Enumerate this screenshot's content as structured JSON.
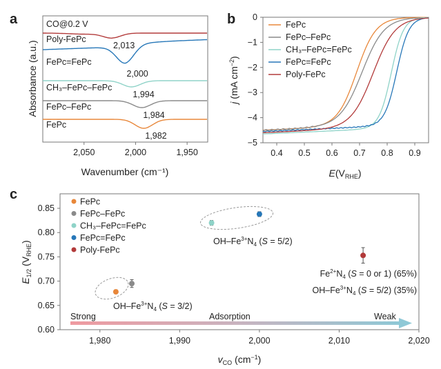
{
  "figure": {
    "panel_labels": [
      "a",
      "b",
      "c"
    ]
  },
  "colors": {
    "FePc": "#e8873a",
    "FePc-FePc": "#8a8a8a",
    "CH3-FePc=FePc": "#8fd3c8",
    "FePc=FePc": "#2677b8",
    "Poly-FePc": "#b23a3a"
  },
  "chart_data": [
    {
      "panel": "a",
      "type": "line",
      "title": "",
      "condition_label": "CO@0.2 V",
      "xlabel": "Wavenumber (cm⁻¹)",
      "ylabel": "Absorbance (a.u.)",
      "xlim": [
        2090,
        1930
      ],
      "x_reversed": true,
      "xticks": [
        2050,
        2000,
        1950
      ],
      "xtick_labels": [
        "2,050",
        "2,000",
        "1,950"
      ],
      "yticks_shown": false,
      "series": [
        {
          "name": "Poly-FePc",
          "label": "Poly-FePc",
          "peak_label": "2,013",
          "peak": 2013
        },
        {
          "name": "FePc=FePc",
          "label": "FePc=FePc",
          "peak_label": "2,000",
          "peak": 2000
        },
        {
          "name": "CH3-FePc-FePc",
          "label": "CH₃–FePc–FePc",
          "peak_label": "1,994",
          "peak": 1994
        },
        {
          "name": "FePc-FePc",
          "label": "FePc–FePc",
          "peak_label": "1,984",
          "peak": 1984
        },
        {
          "name": "FePc",
          "label": "FePc",
          "peak_label": "1,982",
          "peak": 1982
        }
      ]
    },
    {
      "panel": "b",
      "type": "line",
      "xlabel": "E(V_RHE)",
      "ylabel": "j (mA cm⁻²)",
      "xlim": [
        0.35,
        0.95
      ],
      "ylim": [
        -5,
        0
      ],
      "xticks": [
        0.4,
        0.5,
        0.6,
        0.7,
        0.8,
        0.9
      ],
      "yticks": [
        0,
        -1,
        -2,
        -3,
        -4,
        -5
      ],
      "ytick_labels": [
        "0",
        "−1",
        "−2",
        "−3",
        "−4",
        "−5"
      ],
      "legend": "top-left",
      "series": [
        {
          "name": "FePc",
          "label": "FePc",
          "half_wave": 0.69,
          "limit": -4.5
        },
        {
          "name": "FePc-FePc",
          "label": "FePc–FePc",
          "half_wave": 0.71,
          "limit": -4.5
        },
        {
          "name": "CH3-FePc=FePc",
          "label": "CH₃–FePc=FePc",
          "half_wave": 0.815,
          "limit": -4.65
        },
        {
          "name": "FePc=FePc",
          "label": "FePc=FePc",
          "half_wave": 0.835,
          "limit": -4.55
        },
        {
          "name": "Poly-FePc",
          "label": "Poly-FePc",
          "half_wave": 0.75,
          "limit": -4.6
        }
      ]
    },
    {
      "panel": "c",
      "type": "scatter",
      "xlabel": "v_CO (cm⁻¹)",
      "ylabel": "E_1/2 (V_RHE)",
      "xlim": [
        1975,
        2020
      ],
      "ylim": [
        0.6,
        0.87
      ],
      "xticks": [
        1980,
        1990,
        2000,
        2010,
        2020
      ],
      "xtick_labels": [
        "1,980",
        "1,990",
        "2,000",
        "2,010",
        "2,020"
      ],
      "yticks": [
        0.6,
        0.65,
        0.7,
        0.75,
        0.8,
        0.85
      ],
      "ytick_labels": [
        "0.60",
        "0.65",
        "0.70",
        "0.75",
        "0.80",
        "0.85"
      ],
      "legend": "top-left",
      "points": [
        {
          "name": "FePc",
          "label": "FePc",
          "x": 1982,
          "y": 0.678,
          "err": 0.004
        },
        {
          "name": "FePc-FePc",
          "label": "FePc–FePc",
          "x": 1984,
          "y": 0.695,
          "err": 0.008
        },
        {
          "name": "CH3-FePc=FePc",
          "label": "CH₃–FePc=FePc",
          "x": 1994,
          "y": 0.82,
          "err": 0.005
        },
        {
          "name": "FePc=FePc",
          "label": "FePc=FePc",
          "x": 2000,
          "y": 0.838,
          "err": 0.005
        },
        {
          "name": "Poly-FePc",
          "label": "Poly-FePc",
          "x": 2013,
          "y": 0.753,
          "err": 0.016
        }
      ],
      "annotations": {
        "group1": "OH–Fe³⁺N₄ (S = 3/2)",
        "group2": "OH–Fe³⁺N₄ (S = 5/2)",
        "poly_line1": "Fe²⁺N₄ (S = 0 or 1) (65%)",
        "poly_line2": "OH–Fe³⁺N₄ (S = 5/2) (35%)"
      },
      "arrow": {
        "left": "Strong",
        "middle": "Adsorption",
        "right": "Weak"
      }
    }
  ]
}
